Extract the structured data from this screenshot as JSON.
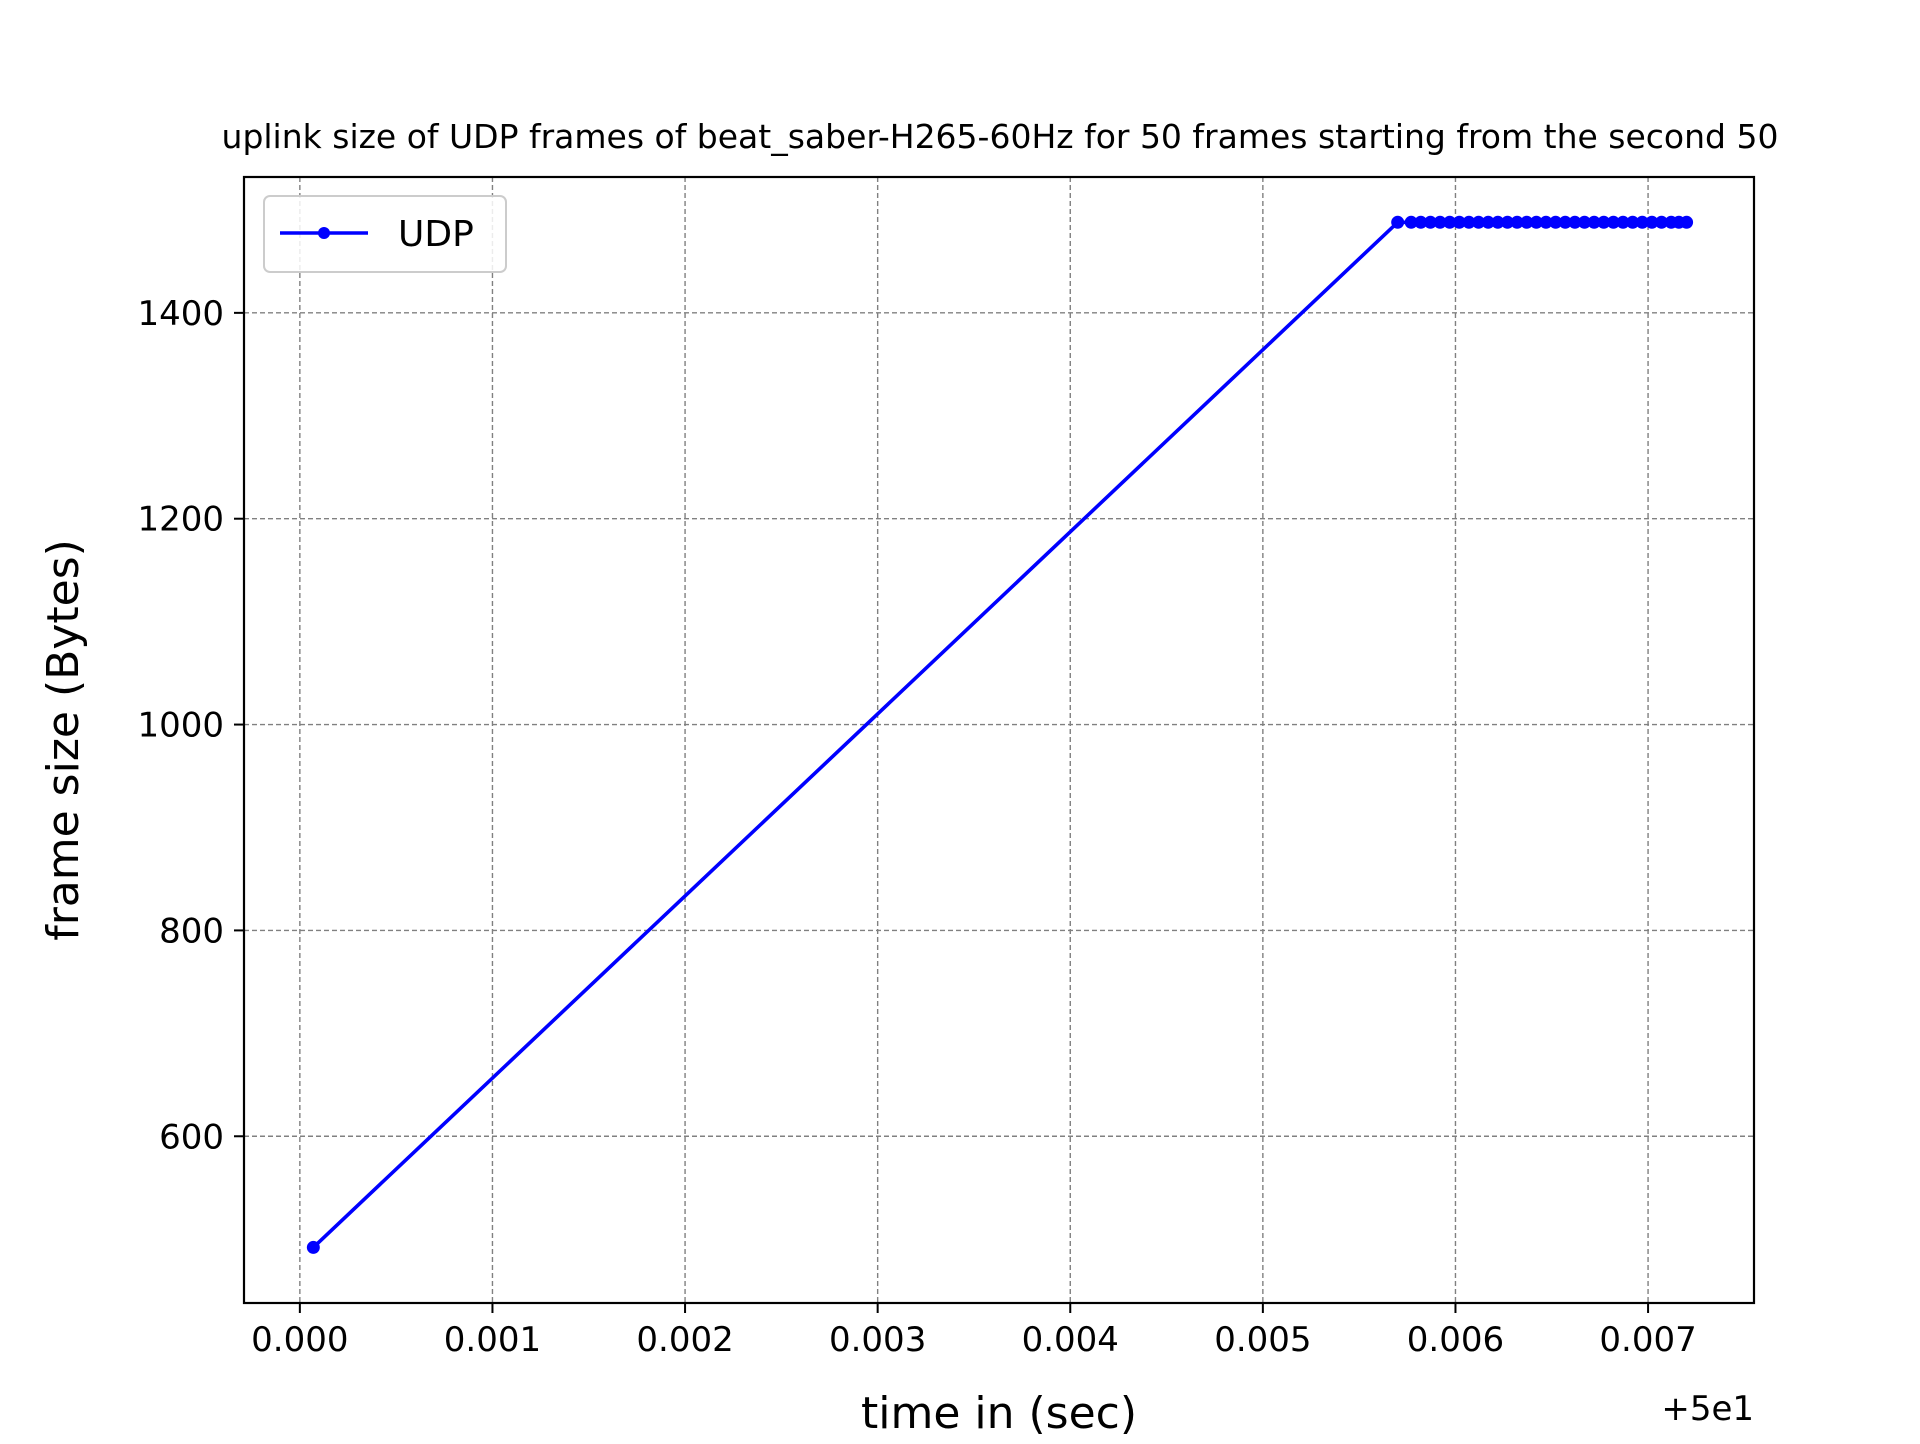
{
  "chart_data": {
    "type": "line",
    "title": "uplink size of UDP frames of beat_saber-H265-60Hz for 50 frames starting from the second 50",
    "xlabel": "time in (sec)",
    "ylabel": "frame size (Bytes)",
    "x_offset_label": "+5e1",
    "x_offset": 50,
    "xlim": [
      49.99971,
      50.00755
    ],
    "ylim": [
      438,
      1532
    ],
    "x_ticks": [
      50.0,
      50.001,
      50.002,
      50.003,
      50.004,
      50.005,
      50.006,
      50.007
    ],
    "x_tick_labels": [
      "0.000",
      "0.001",
      "0.002",
      "0.003",
      "0.004",
      "0.005",
      "0.006",
      "0.007"
    ],
    "y_ticks": [
      600,
      800,
      1000,
      1200,
      1400
    ],
    "y_tick_labels": [
      "600",
      "800",
      "1000",
      "1200",
      "1400"
    ],
    "grid": true,
    "legend_position": "upper-left",
    "series": [
      {
        "name": "UDP",
        "color": "#0000ff",
        "marker": "dot",
        "x": [
          50.00007,
          50.0057,
          50.00577,
          50.00582,
          50.00587,
          50.00592,
          50.00597,
          50.00602,
          50.00607,
          50.00612,
          50.00617,
          50.00622,
          50.00627,
          50.00632,
          50.00637,
          50.00642,
          50.00647,
          50.00652,
          50.00657,
          50.00662,
          50.00667,
          50.00672,
          50.00677,
          50.00682,
          50.00687,
          50.00692,
          50.00697,
          50.00702,
          50.00707,
          50.00712,
          50.00716,
          50.0072
        ],
        "y": [
          492,
          1488,
          1488,
          1488,
          1488,
          1488,
          1488,
          1488,
          1488,
          1488,
          1488,
          1488,
          1488,
          1488,
          1488,
          1488,
          1488,
          1488,
          1488,
          1488,
          1488,
          1488,
          1488,
          1488,
          1488,
          1488,
          1488,
          1488,
          1488,
          1488,
          1488,
          1488
        ]
      }
    ]
  }
}
